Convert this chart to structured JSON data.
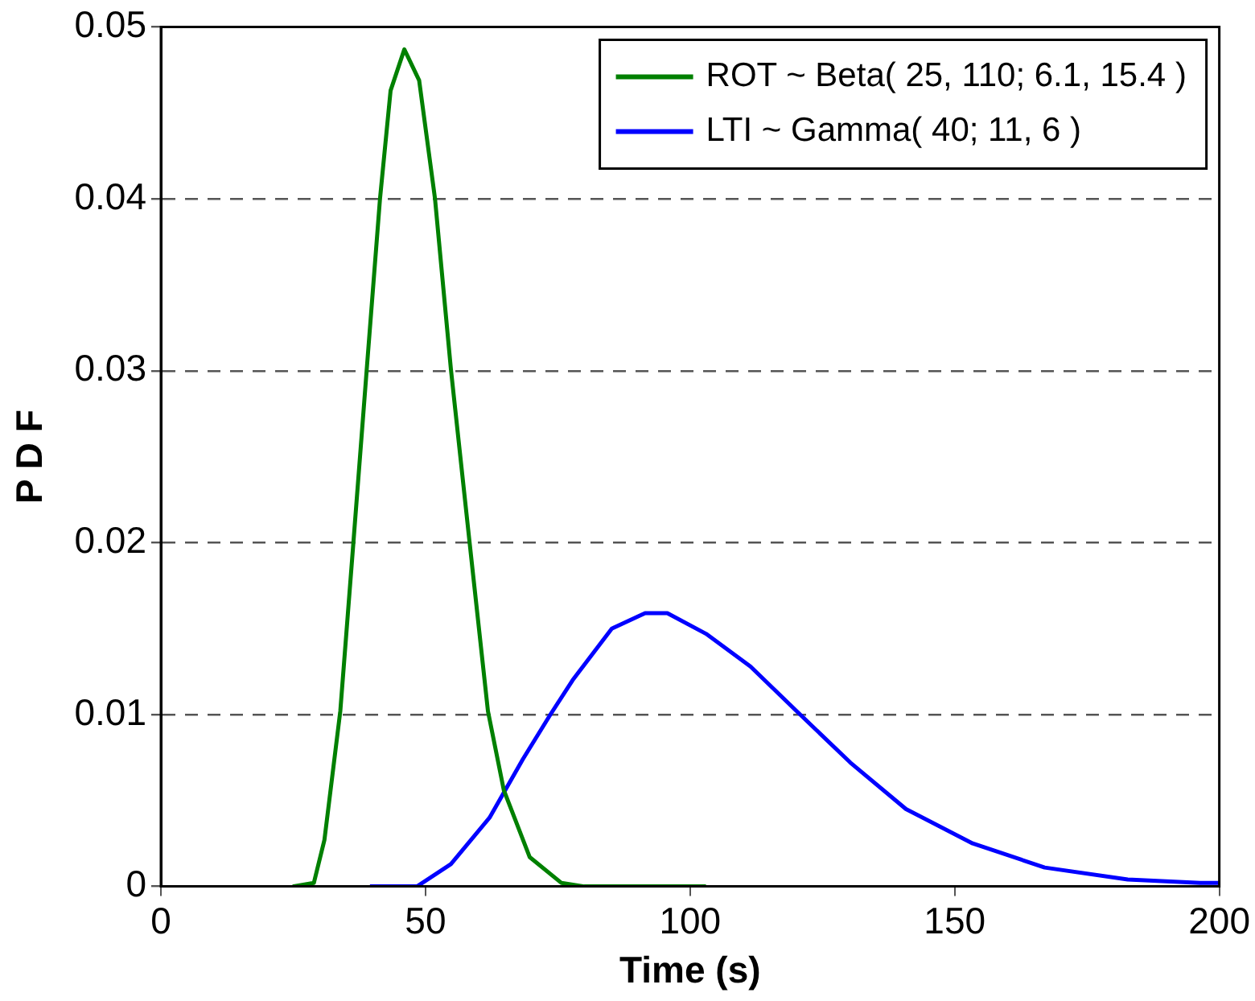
{
  "chart_data": {
    "type": "line",
    "xlabel": "Time (s)",
    "ylabel": "P D F",
    "xlim": [
      0,
      200
    ],
    "xticks": [
      0,
      50,
      100,
      150,
      200
    ],
    "ylim": [
      0,
      0.05
    ],
    "yticks": [
      0,
      0.01,
      0.02,
      0.03,
      0.04,
      0.05
    ],
    "grid": "y",
    "legend": "top right",
    "marker": "none",
    "line_style": "solid",
    "series": [
      {
        "name": "ROT ~ Beta( 25, 110; 6.1, 15.4 )",
        "color": "#008000",
        "x": [
          24.9,
          28.9,
          30.9,
          33.9,
          36.4,
          38.9,
          41.4,
          43.4,
          46.0,
          48.8,
          51.8,
          54.8,
          58.3,
          61.8,
          64.8,
          69.7,
          75.7,
          80,
          103
        ],
        "values": [
          0,
          0.0002,
          0.0027,
          0.0102,
          0.0201,
          0.0301,
          0.04,
          0.0463,
          0.0487,
          0.0469,
          0.04,
          0.0301,
          0.0201,
          0.0102,
          0.0056,
          0.0017,
          0.0002,
          0,
          0
        ]
      },
      {
        "name": "LTI ~ Gamma( 40; 11, 6 )",
        "color": "#0000ff",
        "x": [
          39.5,
          48.4,
          54.8,
          62.1,
          68.4,
          73.6,
          77.8,
          85.2,
          91.5,
          95.7,
          103.0,
          111.4,
          120.8,
          130.3,
          140.8,
          153.4,
          167,
          182.7,
          196.4,
          200
        ],
        "values": [
          0,
          0,
          0.0013,
          0.004,
          0.0074,
          0.01,
          0.012,
          0.015,
          0.0159,
          0.0159,
          0.0147,
          0.0128,
          0.01,
          0.0072,
          0.0045,
          0.0025,
          0.0011,
          0.0004,
          0.0002,
          0.0002
        ]
      }
    ]
  }
}
